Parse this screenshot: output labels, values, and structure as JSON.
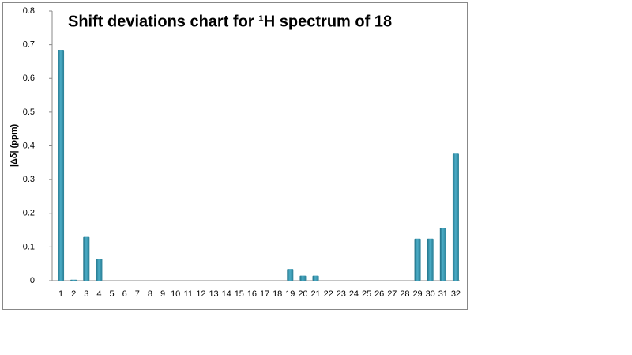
{
  "chart_data": {
    "type": "bar",
    "title": "Shift deviations chart for ¹H spectrum of 18",
    "y_label": "|Δδ| (ppm)",
    "categories": [
      "1",
      "2",
      "3",
      "4",
      "5",
      "6",
      "7",
      "8",
      "9",
      "10",
      "11",
      "12",
      "13",
      "14",
      "15",
      "16",
      "17",
      "18",
      "19",
      "20",
      "21",
      "22",
      "23",
      "24",
      "25",
      "26",
      "27",
      "28",
      "29",
      "30",
      "31",
      "32"
    ],
    "values": [
      0.685,
      0.003,
      0.13,
      0.065,
      0,
      0,
      0,
      0,
      0,
      0,
      0,
      0,
      0,
      0,
      0,
      0,
      0,
      0,
      0.035,
      0.015,
      0.015,
      0,
      0,
      0,
      0,
      0,
      0,
      0,
      0.125,
      0.125,
      0.157,
      0.377
    ],
    "color": "#4bacc6",
    "ylim": [
      0,
      0.8
    ],
    "yticks": [
      0,
      0.1,
      0.2,
      0.3,
      0.4,
      0.5,
      0.6,
      0.7,
      0.8
    ],
    "grid": false
  }
}
